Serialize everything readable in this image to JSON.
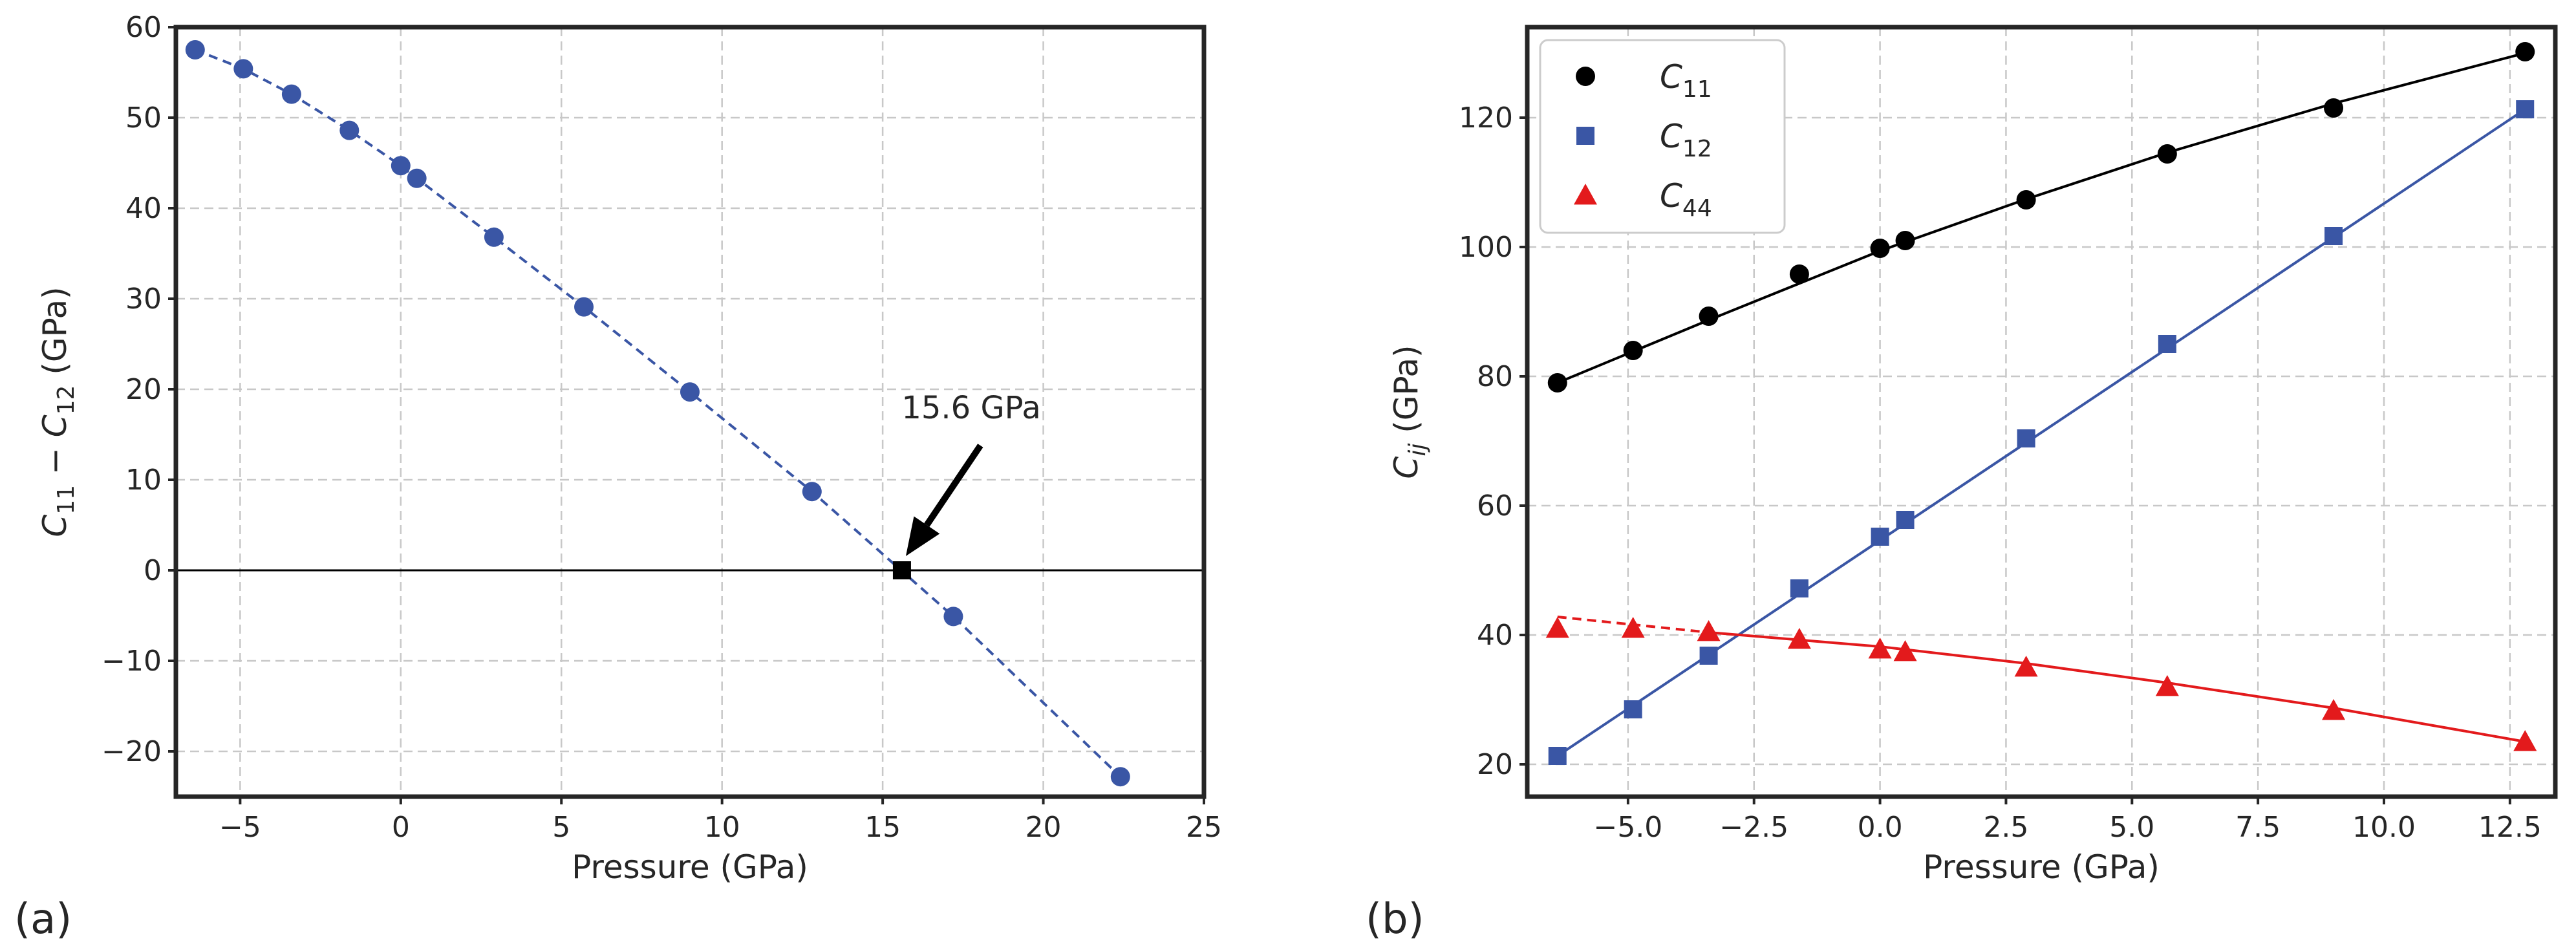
{
  "chart_data": [
    {
      "type": "scatter",
      "panel_label": "(a)",
      "title": "",
      "xlabel": "Pressure (GPa)",
      "ylabel": "C11 − C12 (GPa)",
      "ylabel_parts": {
        "c1": "C",
        "s1": "11",
        "minus": " − ",
        "c2": "C",
        "s2": "12",
        "unit": " (GPa)"
      },
      "xlim": [
        -7,
        25
      ],
      "ylim": [
        -25,
        60
      ],
      "xticks": [
        -5,
        0,
        5,
        10,
        15,
        20,
        25
      ],
      "yticks": [
        -20,
        -10,
        0,
        10,
        20,
        30,
        40,
        50,
        60
      ],
      "xtick_labels": [
        "−5",
        "0",
        "5",
        "10",
        "15",
        "20",
        "25"
      ],
      "ytick_labels": [
        "−20",
        "−10",
        "0",
        "10",
        "20",
        "30",
        "40",
        "50",
        "60"
      ],
      "grid": true,
      "series": [
        {
          "name": "C11 - C12",
          "color": "#3a56a5",
          "marker": "circle",
          "line": "dashed",
          "x": [
            -6.4,
            -4.9,
            -3.4,
            -1.6,
            0.0,
            0.5,
            2.9,
            5.7,
            9.0,
            12.8,
            17.2,
            22.4
          ],
          "y": [
            57.5,
            55.4,
            52.6,
            48.6,
            44.7,
            43.3,
            36.8,
            29.1,
            19.7,
            8.7,
            -5.1,
            -22.8
          ]
        }
      ],
      "zero_line": {
        "y": 0,
        "color": "#000000"
      },
      "transition_point": {
        "x": 15.6,
        "y": 0,
        "marker": "square",
        "color": "#000000"
      },
      "annotation": {
        "text": "15.6 GPa",
        "xy": [
          15.6,
          0
        ],
        "xytext": [
          17.6,
          17.5
        ]
      }
    },
    {
      "type": "scatter",
      "panel_label": "(b)",
      "title": "",
      "xlabel": "Pressure (GPa)",
      "ylabel": "Cij (GPa)",
      "ylabel_parts": {
        "c": "C",
        "sub": "ij",
        "unit": " (GPa)"
      },
      "xlim": [
        -7.0,
        13.4
      ],
      "ylim": [
        15,
        134
      ],
      "xticks": [
        -5.0,
        -2.5,
        0.0,
        2.5,
        5.0,
        7.5,
        10.0,
        12.5
      ],
      "yticks": [
        20,
        40,
        60,
        80,
        100,
        120
      ],
      "xtick_labels": [
        "−5.0",
        "−2.5",
        "0.0",
        "2.5",
        "5.0",
        "7.5",
        "10.0",
        "12.5"
      ],
      "ytick_labels": [
        "20",
        "40",
        "60",
        "80",
        "100",
        "120"
      ],
      "grid": true,
      "legend_position": "upper-left",
      "series": [
        {
          "name": "C11",
          "base": "C",
          "sub": "11",
          "color": "#000000",
          "marker": "circle",
          "line": "solid",
          "x": [
            -6.4,
            -4.9,
            -3.4,
            -1.6,
            0.0,
            0.5,
            2.9,
            5.7,
            9.0,
            12.8
          ],
          "y": [
            79.0,
            84.0,
            89.3,
            95.8,
            99.8,
            101.0,
            107.3,
            114.4,
            121.5,
            130.2
          ],
          "fit": [
            [
              -6.4,
              79.0
            ],
            [
              -3.4,
              88.7
            ],
            [
              0.0,
              99.4
            ],
            [
              2.9,
              107.4
            ],
            [
              5.7,
              114.6
            ],
            [
              9.0,
              122.2
            ],
            [
              12.8,
              130.0
            ]
          ]
        },
        {
          "name": "C12",
          "base": "C",
          "sub": "12",
          "color": "#3a56a5",
          "marker": "square",
          "line": "solid",
          "x": [
            -6.4,
            -4.9,
            -3.4,
            -1.6,
            0.0,
            0.5,
            2.9,
            5.7,
            9.0,
            12.8
          ],
          "y": [
            21.3,
            28.5,
            36.8,
            47.2,
            55.2,
            57.8,
            70.4,
            85.0,
            101.7,
            121.3
          ],
          "fit": [
            [
              -6.4,
              21.3
            ],
            [
              12.8,
              121.3
            ]
          ]
        },
        {
          "name": "C44",
          "base": "C",
          "sub": "44",
          "color": "#e31a1c",
          "marker": "triangle",
          "line": "solid",
          "x": [
            -6.4,
            -4.9,
            -3.4,
            -1.6,
            0.0,
            0.5,
            2.9,
            5.7,
            9.0,
            12.8
          ],
          "y": [
            41.0,
            41.0,
            40.5,
            39.3,
            37.8,
            37.4,
            35.0,
            32.0,
            28.3,
            23.5
          ],
          "fit_dashed": [
            [
              -6.4,
              42.8
            ],
            [
              -3.4,
              40.4
            ]
          ],
          "fit": [
            [
              -3.4,
              40.4
            ],
            [
              0.0,
              38.2
            ],
            [
              2.9,
              35.6
            ],
            [
              5.7,
              32.6
            ],
            [
              9.0,
              28.7
            ],
            [
              12.8,
              23.5
            ]
          ]
        }
      ]
    }
  ]
}
